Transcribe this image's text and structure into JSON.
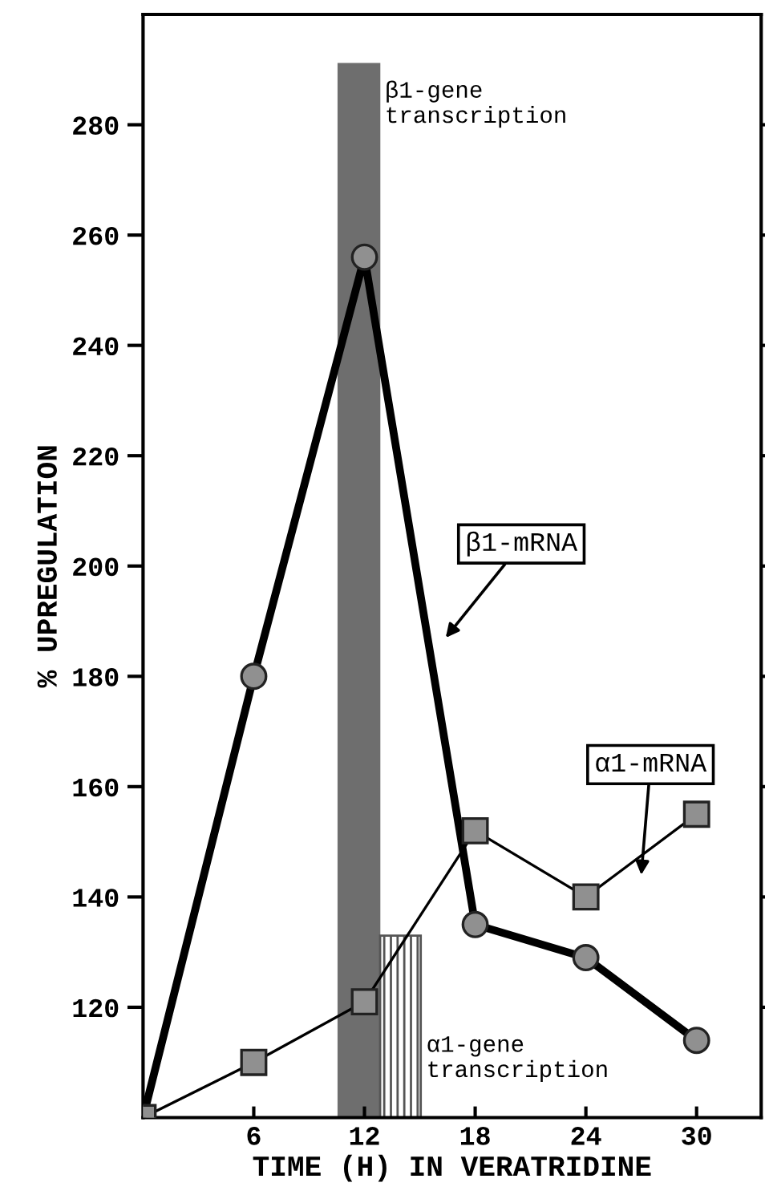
{
  "chart_data": {
    "type": "line",
    "xlabel": "TIME (H) IN VERATRIDINE",
    "ylabel": "% UPREGULATION",
    "xlim": [
      0,
      33.5
    ],
    "ylim": [
      100,
      300
    ],
    "xticks": [
      6,
      12,
      18,
      24,
      30
    ],
    "yticks": [
      120,
      140,
      160,
      180,
      200,
      220,
      240,
      260,
      280
    ],
    "grid": false,
    "series": [
      {
        "type": "bar",
        "name": "β1-gene transcription",
        "color": "#6e6e6e",
        "x": [
          11.7
        ],
        "values": [
          291
        ]
      },
      {
        "type": "bar",
        "name": "α1-gene transcription",
        "color": "#555555",
        "x": [
          13.95
        ],
        "values": [
          133
        ]
      },
      {
        "name": "β1-mRNA",
        "color": "#000000",
        "marker": "circle",
        "x": [
          0,
          6,
          12,
          18,
          24,
          30
        ],
        "values": [
          100,
          180,
          256,
          135,
          129,
          114
        ]
      },
      {
        "name": "α1-mRNA",
        "color": "#000000",
        "marker": "square",
        "x": [
          0,
          6,
          12,
          18,
          24,
          30
        ],
        "values": [
          100,
          110,
          121,
          152,
          140,
          155
        ]
      }
    ]
  }
}
